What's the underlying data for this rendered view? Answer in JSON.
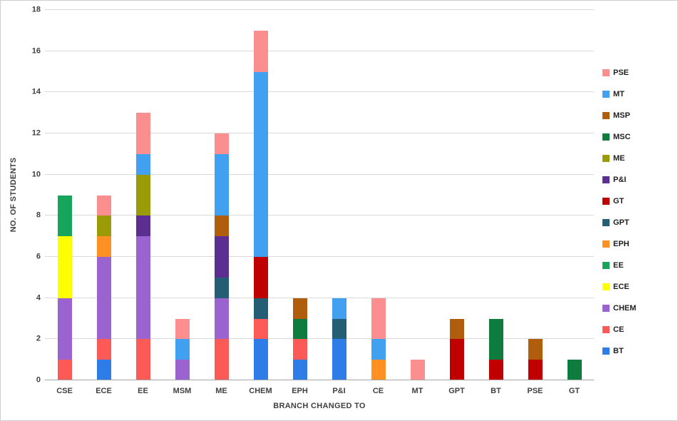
{
  "chart_data": {
    "type": "bar",
    "variant": "stacked",
    "xlabel": "BRANCH CHANGED TO",
    "ylabel": "NO. OF STUDENTS",
    "ylim": [
      0,
      18
    ],
    "ytick_step": 2,
    "grid": true,
    "legend_position": "right",
    "categories": [
      "CSE",
      "ECE",
      "EE",
      "MSM",
      "ME",
      "CHEM",
      "EPH",
      "P&I",
      "CE",
      "MT",
      "GPT",
      "BT",
      "PSE",
      "GT"
    ],
    "series": [
      {
        "name": "BT",
        "color": "#2d7ce8",
        "values": [
          0,
          1,
          0,
          0,
          0,
          2,
          1,
          2,
          0,
          0,
          0,
          0,
          0,
          0
        ]
      },
      {
        "name": "CE",
        "color": "#fb5a56",
        "values": [
          1,
          1,
          2,
          0,
          2,
          1,
          1,
          0,
          0,
          0,
          0,
          0,
          0,
          0
        ]
      },
      {
        "name": "CHEM",
        "color": "#9a63d0",
        "values": [
          3,
          4,
          5,
          1,
          2,
          0,
          0,
          0,
          0,
          0,
          0,
          0,
          0,
          0
        ]
      },
      {
        "name": "ECE",
        "color": "#ffff00",
        "values": [
          3,
          0,
          0,
          0,
          0,
          0,
          0,
          0,
          0,
          0,
          0,
          0,
          0,
          0
        ]
      },
      {
        "name": "EE",
        "color": "#17a45b",
        "values": [
          2,
          0,
          0,
          0,
          0,
          0,
          0,
          0,
          0,
          0,
          0,
          0,
          0,
          0
        ]
      },
      {
        "name": "EPH",
        "color": "#ff9023",
        "values": [
          0,
          1,
          0,
          0,
          0,
          0,
          0,
          0,
          1,
          0,
          0,
          0,
          0,
          0
        ]
      },
      {
        "name": "GPT",
        "color": "#235e74",
        "values": [
          0,
          0,
          0,
          0,
          1,
          1,
          0,
          1,
          0,
          0,
          0,
          0,
          0,
          0
        ]
      },
      {
        "name": "GT",
        "color": "#c00000",
        "values": [
          0,
          0,
          0,
          0,
          0,
          2,
          0,
          0,
          0,
          0,
          2,
          1,
          1,
          0
        ]
      },
      {
        "name": "P&I",
        "color": "#5c2e91",
        "values": [
          0,
          0,
          1,
          0,
          2,
          0,
          0,
          0,
          0,
          0,
          0,
          0,
          0,
          0
        ]
      },
      {
        "name": "ME",
        "color": "#9b9b08",
        "values": [
          0,
          1,
          2,
          0,
          0,
          0,
          0,
          0,
          0,
          0,
          0,
          0,
          0,
          0
        ]
      },
      {
        "name": "MSC",
        "color": "#0e7c3e",
        "values": [
          0,
          0,
          0,
          0,
          0,
          0,
          1,
          0,
          0,
          0,
          0,
          2,
          0,
          1
        ]
      },
      {
        "name": "MSP",
        "color": "#b05e0d",
        "values": [
          0,
          0,
          0,
          0,
          1,
          0,
          1,
          0,
          0,
          0,
          1,
          0,
          1,
          0
        ]
      },
      {
        "name": "MT",
        "color": "#41a1f0",
        "values": [
          0,
          0,
          1,
          1,
          3,
          9,
          0,
          1,
          1,
          0,
          0,
          0,
          0,
          0
        ]
      },
      {
        "name": "PSE",
        "color": "#fb8f8f",
        "values": [
          0,
          1,
          2,
          1,
          1,
          2,
          0,
          0,
          2,
          1,
          0,
          0,
          0,
          0
        ]
      }
    ]
  }
}
